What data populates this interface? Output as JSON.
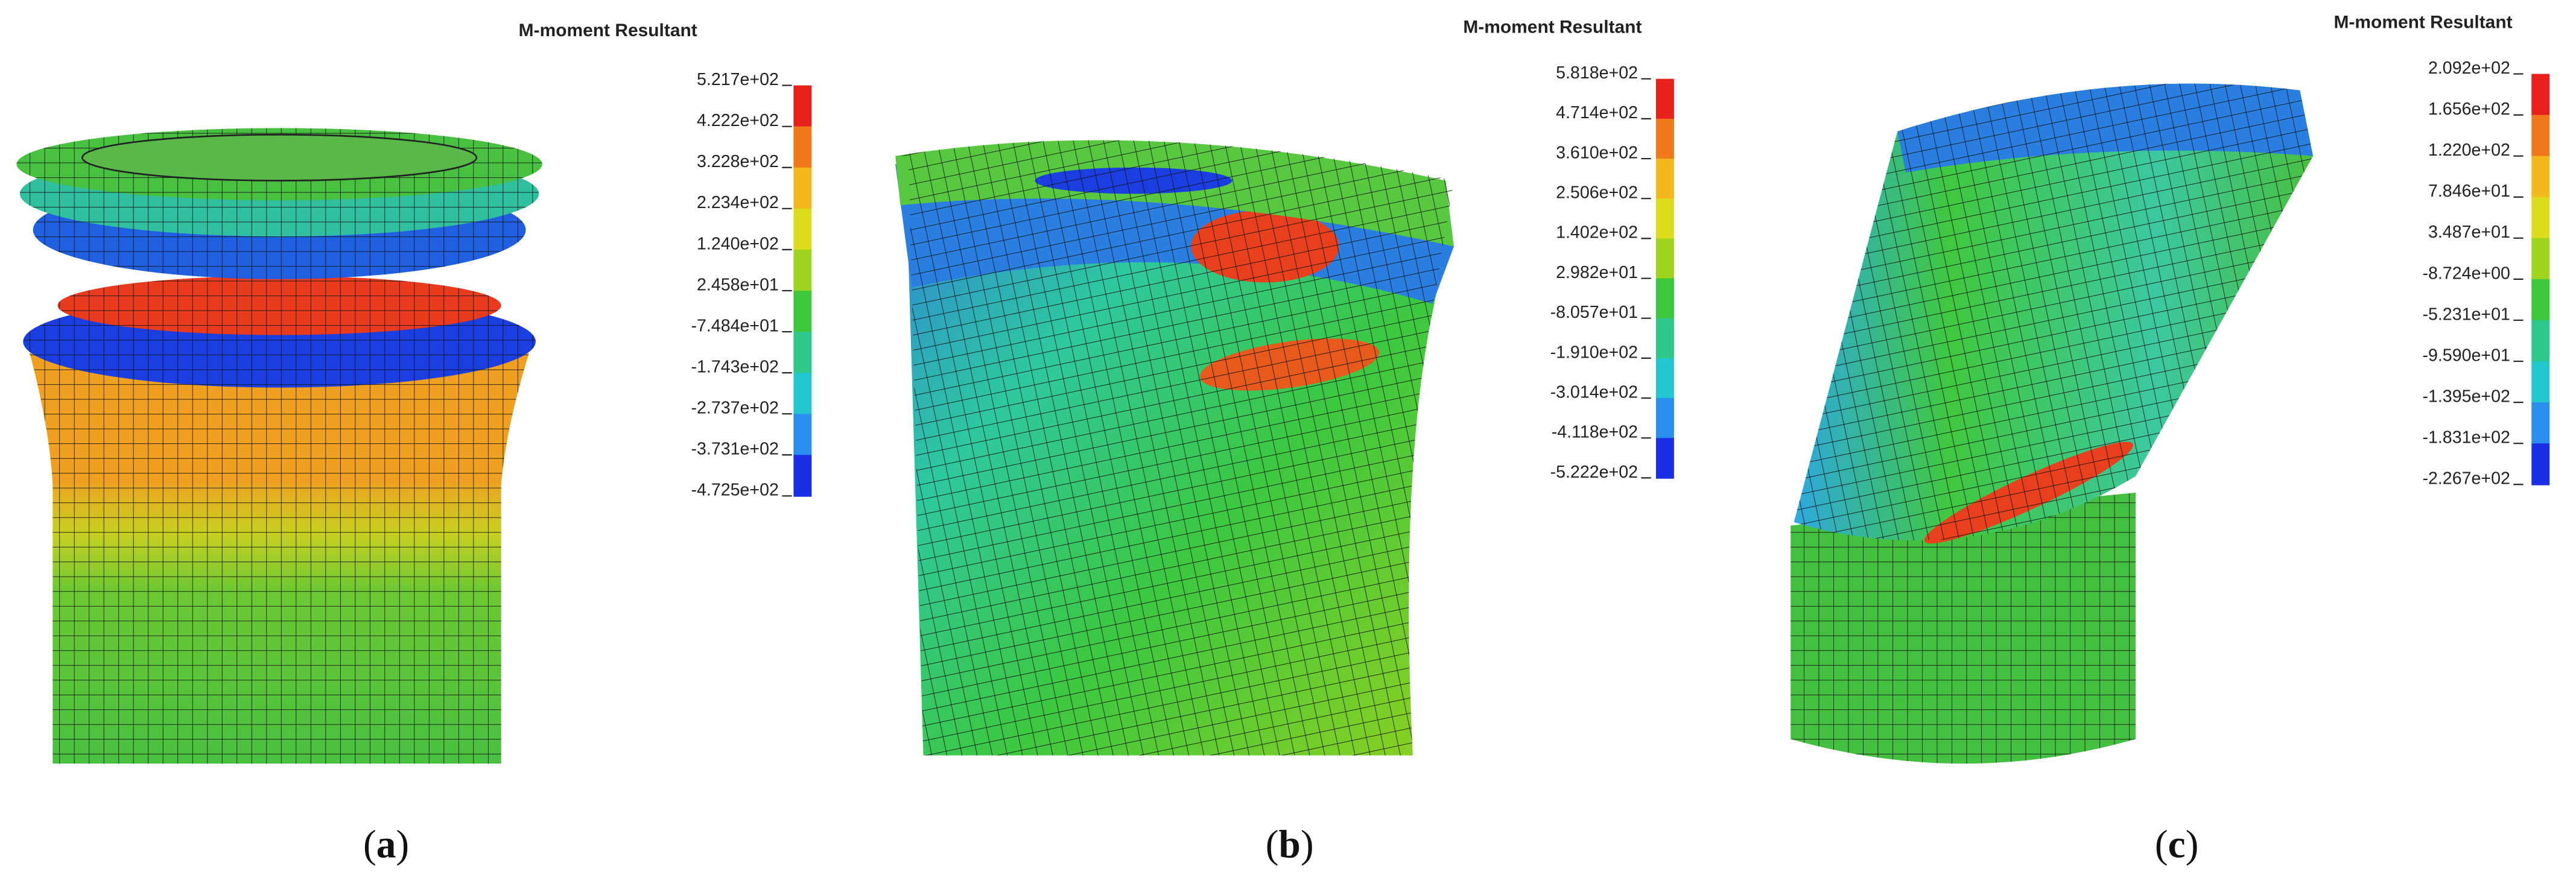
{
  "panels": [
    {
      "legend_title": "M-moment Resultant",
      "legend_labels": [
        "5.217e+02",
        "4.222e+02",
        "3.228e+02",
        "2.234e+02",
        "1.240e+02",
        "2.458e+01",
        "-7.484e+01",
        "-1.743e+02",
        "-2.737e+02",
        "-3.731e+02",
        "-4.725e+02"
      ],
      "caption": [
        "(",
        "a",
        ")"
      ]
    },
    {
      "legend_title": "M-moment Resultant",
      "legend_labels": [
        "5.818e+02",
        "4.714e+02",
        "3.610e+02",
        "2.506e+02",
        "1.402e+02",
        "2.982e+01",
        "-8.057e+01",
        "-1.910e+02",
        "-3.014e+02",
        "-4.118e+02",
        "-5.222e+02"
      ],
      "caption": [
        "(",
        "b",
        ")"
      ]
    },
    {
      "legend_title": "M-moment Resultant",
      "legend_labels": [
        "2.092e+02",
        "1.656e+02",
        "1.220e+02",
        "7.846e+01",
        "3.487e+01",
        "-8.724e+00",
        "-5.231e+01",
        "-9.590e+01",
        "-1.395e+02",
        "-1.831e+02",
        "-2.267e+02"
      ],
      "caption": [
        "(",
        "c",
        ")"
      ]
    }
  ],
  "colorbar_colors": [
    "#e8201c",
    "#f07a1a",
    "#f2b81c",
    "#dcdc1c",
    "#9ed41e",
    "#3cc83a",
    "#2ec88a",
    "#22c8d0",
    "#2a8ef0",
    "#1a2ee6"
  ]
}
